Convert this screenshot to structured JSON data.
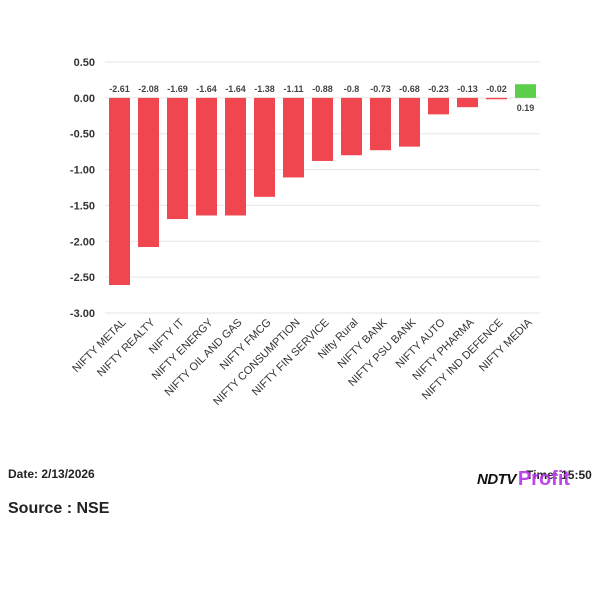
{
  "chart_data": {
    "type": "bar",
    "categories": [
      "NIFTY METAL",
      "NIFTY REALTY",
      "NIFTY IT",
      "NIFTY ENERGY",
      "NIFTY OIL AND GAS",
      "NIFTY FMCG",
      "NIFTY CONSUMPTION",
      "NIFTY FIN SERVICE",
      "Nifty Rural",
      "NIFTY BANK",
      "NIFTY PSU BANK",
      "NIFTY AUTO",
      "NIFTY PHARMA",
      "NIFTY IND DEFENCE",
      "NIFTY MEDIA"
    ],
    "values": [
      -2.61,
      -2.08,
      -1.69,
      -1.64,
      -1.64,
      -1.38,
      -1.11,
      -0.88,
      -0.8,
      -0.73,
      -0.68,
      -0.23,
      -0.13,
      -0.02,
      0.19
    ],
    "value_labels": [
      "-2.61",
      "-2.08",
      "-1.69",
      "-1.64",
      "-1.64",
      "-1.38",
      "-1.11",
      "-0.88",
      "-0.8",
      "-0.73",
      "-0.68",
      "-0.23",
      "-0.13",
      "-0.02",
      "0.19"
    ],
    "yticks": [
      0.5,
      0,
      -0.5,
      -1,
      -1.5,
      -2,
      -2.5,
      -3
    ],
    "ytick_labels": [
      "0.50",
      "0.00",
      "-0.50",
      "-1.00",
      "-1.50",
      "-2.00",
      "-2.50",
      "-3.00"
    ],
    "ylim": [
      -3,
      0.5
    ],
    "grid": true,
    "colors": {
      "negative": "#f0464f",
      "positive": "#5ccf4a"
    }
  },
  "footer": {
    "date": "Date: 2/13/2026",
    "source": "Source : NSE",
    "time": "Time: 15:50",
    "logo_main": "NDTV",
    "logo_accent": "Profit"
  }
}
